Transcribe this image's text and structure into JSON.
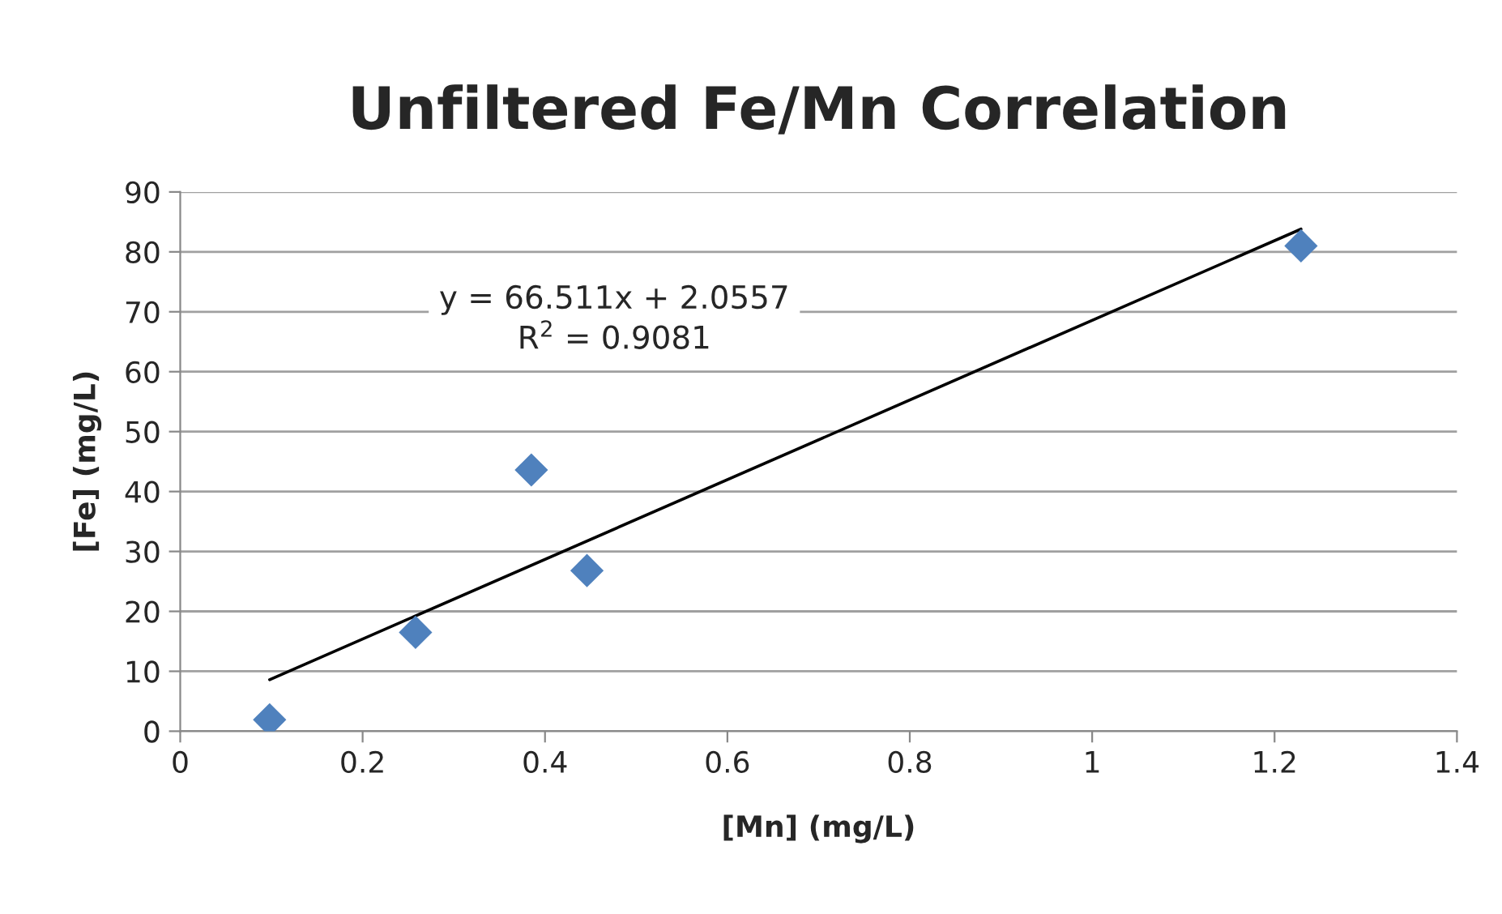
{
  "chart_data": {
    "type": "scatter",
    "title": "Unfiltered Fe/Mn Correlation",
    "xlabel": "[Mn] (mg/L)",
    "ylabel": "[Fe] (mg/L)",
    "series": [
      {
        "color": "#4f81bd",
        "marker": "diamond",
        "x": [
          0.098,
          0.258,
          0.385,
          0.446,
          1.229
        ],
        "values": [
          1.9,
          16.5,
          43.6,
          26.8,
          81
        ]
      },
      {
        "type": "line",
        "color": "#000000",
        "marker": "none",
        "line_style": "solid",
        "x": [
          0.098,
          1.229
        ],
        "values": [
          8.6,
          83.8
        ]
      }
    ],
    "annotations": [
      "y = 66.511x + 2.0557",
      "R$^{2}$ = 0.9081"
    ],
    "xlim": [
      0,
      1.4
    ],
    "xticks": [
      0,
      {
        "value": 0.2,
        "label": "0.2"
      },
      {
        "value": 0.4,
        "label": "0.4"
      },
      {
        "value": 0.6,
        "label": "0.6"
      },
      {
        "value": 0.8,
        "label": "0.8"
      },
      1,
      {
        "value": 1.2,
        "label": "1.2"
      },
      {
        "value": 1.4,
        "label": "1.4"
      }
    ],
    "ylim": [
      0,
      90
    ],
    "yticks": [
      0,
      10,
      20,
      30,
      40,
      50,
      60,
      70,
      80,
      90
    ],
    "grid": "y",
    "legend": false
  }
}
